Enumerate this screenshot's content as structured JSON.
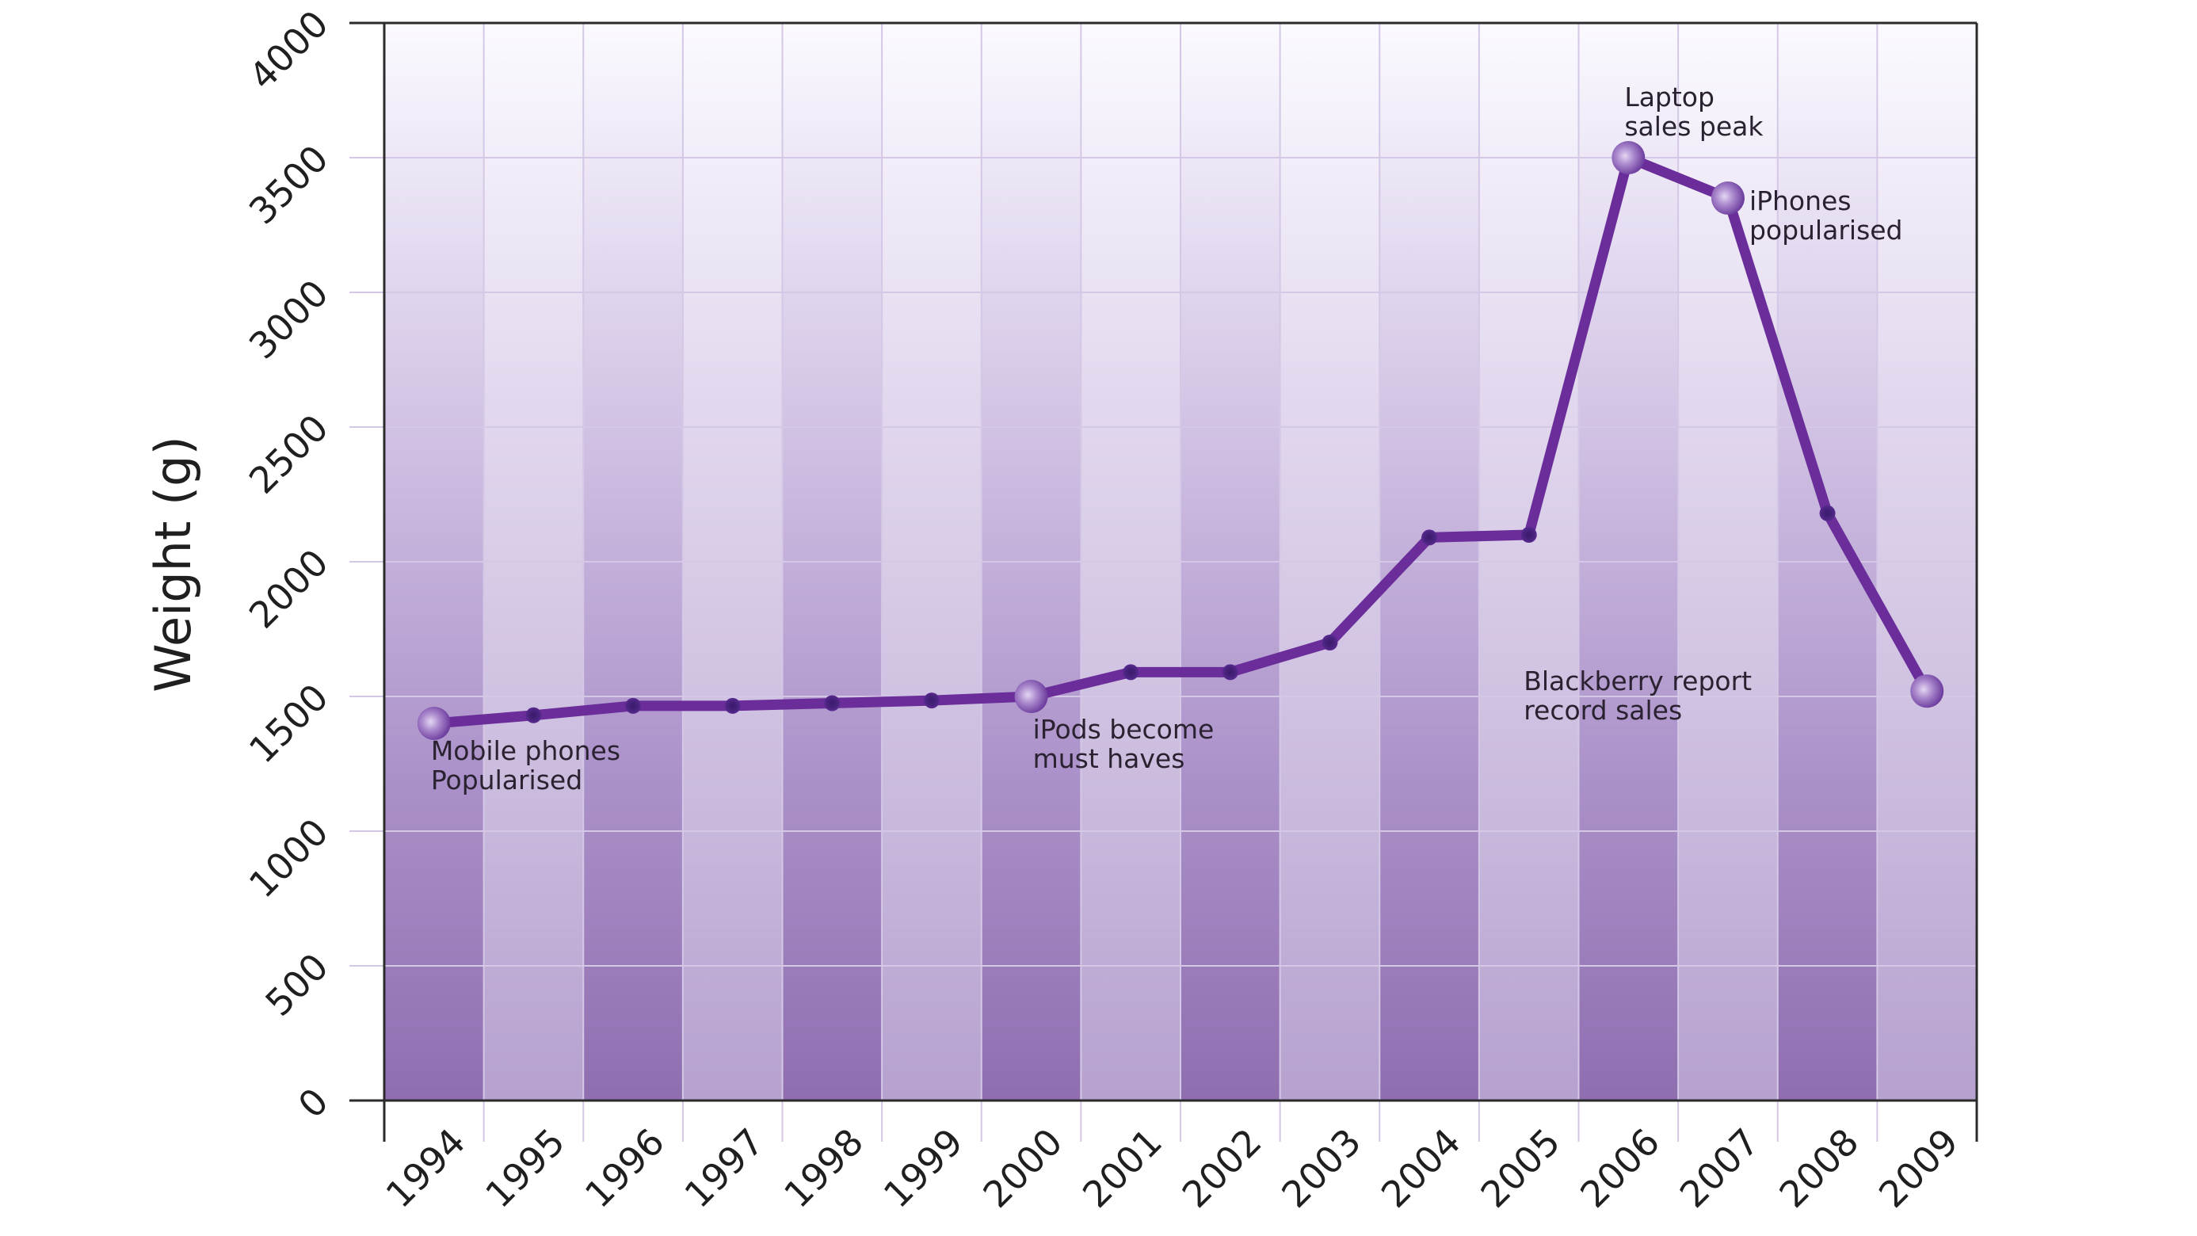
{
  "chart_data": {
    "type": "line",
    "title": "",
    "xlabel": "",
    "ylabel": "Weight (g)",
    "categories": [
      "1994",
      "1995",
      "1996",
      "1997",
      "1998",
      "1999",
      "2000",
      "2001",
      "2002",
      "2003",
      "2004",
      "2005",
      "2006",
      "2007",
      "2008",
      "2009"
    ],
    "series": [
      {
        "name": "Weight",
        "values": [
          1400,
          1430,
          1465,
          1465,
          1475,
          1485,
          1500,
          1590,
          1590,
          1700,
          2090,
          2100,
          3500,
          3350,
          2180,
          1520
        ]
      }
    ],
    "highlighted_points": [
      "1994",
      "2000",
      "2006",
      "2007",
      "2009"
    ],
    "ylim": [
      0,
      4000
    ],
    "yticks": [
      0,
      500,
      1000,
      1500,
      2000,
      2500,
      3000,
      3500,
      4000
    ],
    "grid": true,
    "legend": "none",
    "annotations": [
      {
        "category": "1994",
        "lines": [
          "Mobile phones",
          "Popularised"
        ]
      },
      {
        "category": "2000",
        "lines": [
          "iPods become",
          "must haves"
        ]
      },
      {
        "category": "2006",
        "lines": [
          "Laptop",
          "sales peak"
        ]
      },
      {
        "category": "2007",
        "lines": [
          "iPhones",
          "popularised"
        ]
      },
      {
        "category": "2009",
        "lines": [
          "Blackberry report",
          "record sales"
        ]
      }
    ],
    "colors": {
      "line": "#6a2d9a",
      "marker_dark": "#4a2480",
      "marker_light_center": "#d8c6ec",
      "marker_light_edge": "#6a3a9c",
      "column_dark_bottom": "#8f6eb0",
      "column_light_bottom": "#b9a4d2",
      "column_top": "#fbfaff",
      "gridline": "#d4c8e6",
      "axis": "#2b2b2b"
    }
  }
}
